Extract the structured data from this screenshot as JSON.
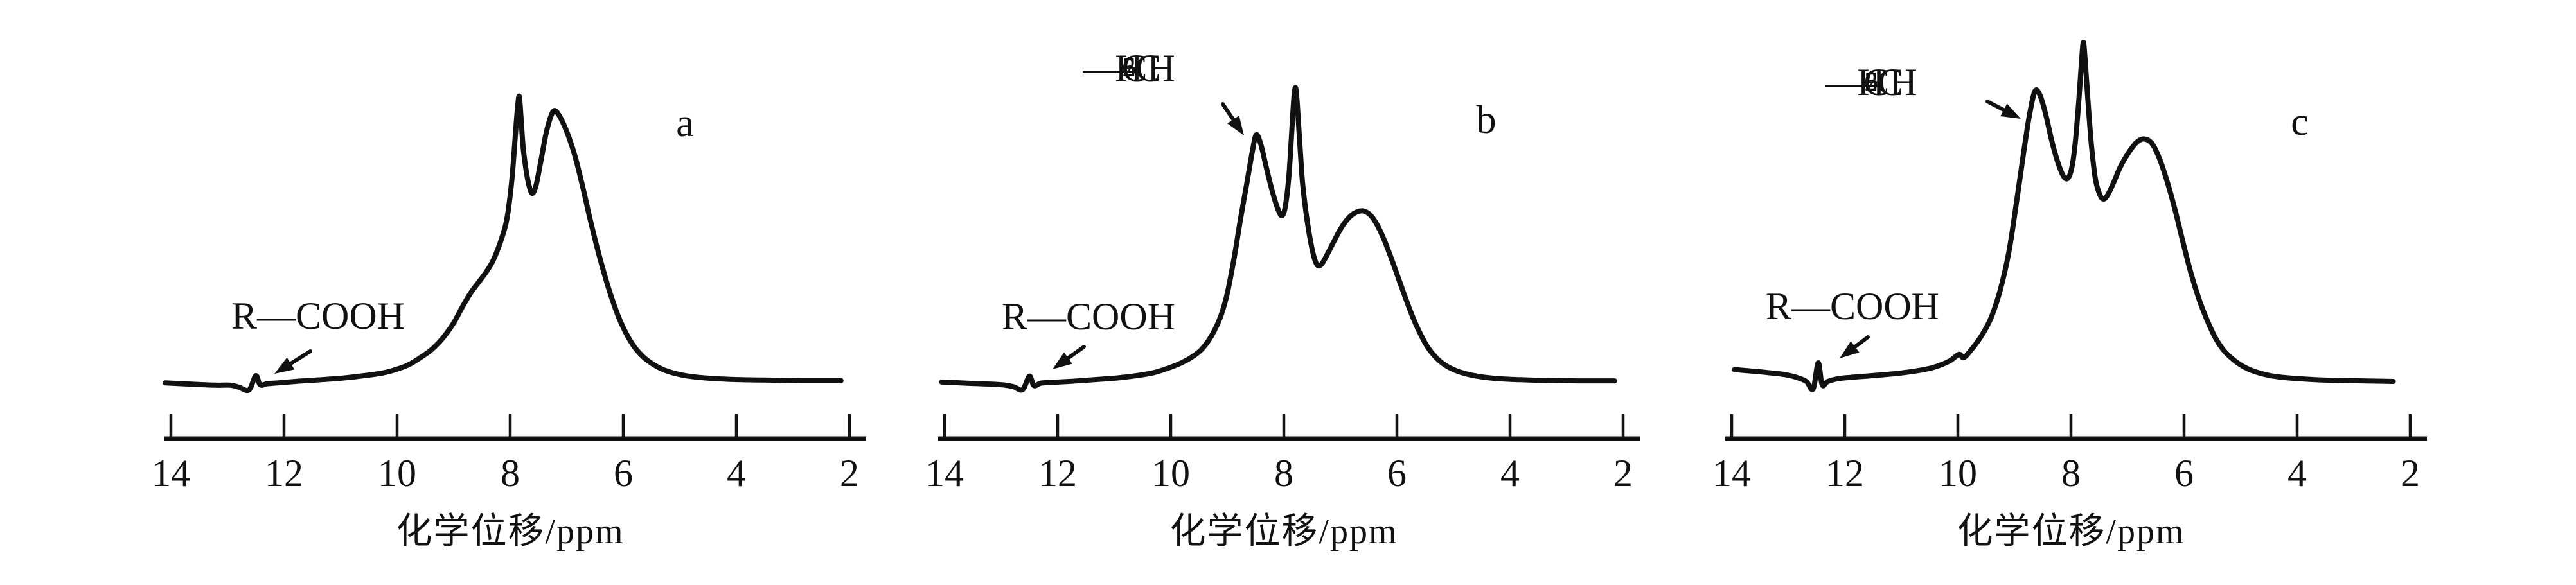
{
  "figure": {
    "description": "Three hand-drawn 1H-NMR spectra panels labelled a, b, c",
    "colors": {
      "ink": "#111111",
      "background": "#ffffff"
    }
  },
  "chart_data": {
    "type": "line",
    "xlabel": "化学位移/ppm",
    "x_axis": {
      "ticks": [
        14,
        12,
        10,
        8,
        6,
        4,
        2
      ],
      "range": [
        14,
        2
      ],
      "reversed": true,
      "unit": "ppm"
    },
    "y_axis": {
      "visible": false,
      "note": "intensity, arbitrary units, normalized 0-1 per panel"
    },
    "panels": [
      {
        "label": "a",
        "annotations": [
          {
            "name": "rcooh",
            "text": "R—COOH",
            "target_ppm": 12.5
          }
        ],
        "series": [
          [
            14.1,
            -0.005
          ],
          [
            13.6,
            -0.01
          ],
          [
            13.2,
            -0.013
          ],
          [
            12.95,
            -0.013
          ],
          [
            12.8,
            -0.02
          ],
          [
            12.62,
            -0.03
          ],
          [
            12.5,
            0.02
          ],
          [
            12.42,
            -0.012
          ],
          [
            12.3,
            -0.008
          ],
          [
            12.1,
            -0.005
          ],
          [
            11.8,
            0.0
          ],
          [
            11.5,
            0.004
          ],
          [
            11.2,
            0.008
          ],
          [
            10.9,
            0.013
          ],
          [
            10.6,
            0.02
          ],
          [
            10.3,
            0.028
          ],
          [
            10.05,
            0.04
          ],
          [
            9.8,
            0.058
          ],
          [
            9.6,
            0.082
          ],
          [
            9.4,
            0.11
          ],
          [
            9.2,
            0.15
          ],
          [
            9.0,
            0.205
          ],
          [
            8.85,
            0.26
          ],
          [
            8.7,
            0.31
          ],
          [
            8.55,
            0.35
          ],
          [
            8.42,
            0.385
          ],
          [
            8.3,
            0.425
          ],
          [
            8.18,
            0.485
          ],
          [
            8.08,
            0.55
          ],
          [
            8.02,
            0.62
          ],
          [
            7.96,
            0.73
          ],
          [
            7.91,
            0.86
          ],
          [
            7.87,
            0.96
          ],
          [
            7.84,
            1.0
          ],
          [
            7.81,
            0.93
          ],
          [
            7.77,
            0.82
          ],
          [
            7.71,
            0.73
          ],
          [
            7.65,
            0.675
          ],
          [
            7.6,
            0.66
          ],
          [
            7.54,
            0.69
          ],
          [
            7.46,
            0.77
          ],
          [
            7.37,
            0.865
          ],
          [
            7.29,
            0.925
          ],
          [
            7.22,
            0.95
          ],
          [
            7.14,
            0.935
          ],
          [
            7.05,
            0.9
          ],
          [
            6.95,
            0.85
          ],
          [
            6.84,
            0.78
          ],
          [
            6.72,
            0.685
          ],
          [
            6.6,
            0.58
          ],
          [
            6.47,
            0.475
          ],
          [
            6.34,
            0.38
          ],
          [
            6.2,
            0.29
          ],
          [
            6.07,
            0.22
          ],
          [
            5.94,
            0.165
          ],
          [
            5.8,
            0.12
          ],
          [
            5.64,
            0.085
          ],
          [
            5.47,
            0.06
          ],
          [
            5.3,
            0.042
          ],
          [
            5.12,
            0.03
          ],
          [
            4.92,
            0.021
          ],
          [
            4.7,
            0.015
          ],
          [
            4.45,
            0.011
          ],
          [
            4.2,
            0.008
          ],
          [
            3.9,
            0.006
          ],
          [
            3.55,
            0.005
          ],
          [
            3.2,
            0.004
          ],
          [
            2.8,
            0.003
          ],
          [
            2.45,
            0.003
          ],
          [
            2.15,
            0.003
          ]
        ]
      },
      {
        "label": "b",
        "annotations": [
          {
            "name": "rcooh",
            "text": "R—COOH",
            "target_ppm": 12.5
          },
          {
            "name": "ch2c6h5",
            "text": "—CH2—C6H5",
            "target_ppm": 8.5,
            "segments": [
              [
                "—CH",
                ""
              ],
              [
                "2",
                "sub"
              ],
              [
                "—C",
                ""
              ],
              [
                "6",
                "sub"
              ],
              [
                "H",
                ""
              ],
              [
                "5",
                "sub"
              ]
            ]
          }
        ],
        "series": [
          [
            14.05,
            -0.002
          ],
          [
            13.6,
            -0.006
          ],
          [
            13.2,
            -0.009
          ],
          [
            12.95,
            -0.012
          ],
          [
            12.78,
            -0.018
          ],
          [
            12.62,
            -0.028
          ],
          [
            12.5,
            0.018
          ],
          [
            12.42,
            -0.014
          ],
          [
            12.3,
            -0.006
          ],
          [
            12.1,
            -0.003
          ],
          [
            11.8,
            0.0
          ],
          [
            11.5,
            0.004
          ],
          [
            11.2,
            0.008
          ],
          [
            10.9,
            0.013
          ],
          [
            10.6,
            0.02
          ],
          [
            10.3,
            0.03
          ],
          [
            10.05,
            0.045
          ],
          [
            9.85,
            0.06
          ],
          [
            9.65,
            0.08
          ],
          [
            9.45,
            0.11
          ],
          [
            9.28,
            0.155
          ],
          [
            9.12,
            0.22
          ],
          [
            9.0,
            0.3
          ],
          [
            8.88,
            0.42
          ],
          [
            8.76,
            0.56
          ],
          [
            8.65,
            0.68
          ],
          [
            8.56,
            0.78
          ],
          [
            8.49,
            0.84
          ],
          [
            8.41,
            0.81
          ],
          [
            8.31,
            0.73
          ],
          [
            8.2,
            0.645
          ],
          [
            8.1,
            0.585
          ],
          [
            8.03,
            0.565
          ],
          [
            7.97,
            0.6
          ],
          [
            7.91,
            0.7
          ],
          [
            7.86,
            0.85
          ],
          [
            7.82,
            0.97
          ],
          [
            7.79,
            1.0
          ],
          [
            7.76,
            0.94
          ],
          [
            7.72,
            0.82
          ],
          [
            7.67,
            0.68
          ],
          [
            7.6,
            0.565
          ],
          [
            7.53,
            0.48
          ],
          [
            7.46,
            0.42
          ],
          [
            7.4,
            0.395
          ],
          [
            7.33,
            0.4
          ],
          [
            7.24,
            0.43
          ],
          [
            7.12,
            0.475
          ],
          [
            6.98,
            0.525
          ],
          [
            6.84,
            0.56
          ],
          [
            6.7,
            0.578
          ],
          [
            6.58,
            0.58
          ],
          [
            6.46,
            0.565
          ],
          [
            6.34,
            0.53
          ],
          [
            6.22,
            0.48
          ],
          [
            6.1,
            0.42
          ],
          [
            5.97,
            0.35
          ],
          [
            5.84,
            0.28
          ],
          [
            5.71,
            0.215
          ],
          [
            5.58,
            0.16
          ],
          [
            5.45,
            0.115
          ],
          [
            5.3,
            0.08
          ],
          [
            5.14,
            0.055
          ],
          [
            4.97,
            0.038
          ],
          [
            4.78,
            0.026
          ],
          [
            4.58,
            0.018
          ],
          [
            4.35,
            0.012
          ],
          [
            4.1,
            0.008
          ],
          [
            3.8,
            0.006
          ],
          [
            3.5,
            0.004
          ],
          [
            3.15,
            0.003
          ],
          [
            2.8,
            0.002
          ],
          [
            2.45,
            0.002
          ],
          [
            2.15,
            0.002
          ]
        ]
      },
      {
        "label": "c",
        "annotations": [
          {
            "name": "rcooh",
            "text": "R—COOH",
            "target_ppm": 12.5
          },
          {
            "name": "ch2c6h5",
            "text": "—CH2—C6H5",
            "target_ppm": 8.7,
            "segments": [
              [
                "—CH",
                ""
              ],
              [
                "2",
                "sub"
              ],
              [
                "—C",
                ""
              ],
              [
                "6",
                "sub"
              ],
              [
                "H",
                ""
              ],
              [
                "5",
                "sub"
              ]
            ]
          }
        ],
        "series": [
          [
            13.95,
            0.035
          ],
          [
            13.6,
            0.03
          ],
          [
            13.3,
            0.025
          ],
          [
            13.05,
            0.02
          ],
          [
            12.85,
            0.012
          ],
          [
            12.68,
            0.0
          ],
          [
            12.56,
            -0.022
          ],
          [
            12.47,
            0.055
          ],
          [
            12.4,
            -0.01
          ],
          [
            12.3,
            0.0
          ],
          [
            12.12,
            0.008
          ],
          [
            11.9,
            0.012
          ],
          [
            11.6,
            0.016
          ],
          [
            11.3,
            0.02
          ],
          [
            11.0,
            0.025
          ],
          [
            10.7,
            0.032
          ],
          [
            10.42,
            0.042
          ],
          [
            10.15,
            0.06
          ],
          [
            9.98,
            0.08
          ],
          [
            9.9,
            0.07
          ],
          [
            9.78,
            0.09
          ],
          [
            9.6,
            0.13
          ],
          [
            9.42,
            0.185
          ],
          [
            9.25,
            0.27
          ],
          [
            9.1,
            0.38
          ],
          [
            8.97,
            0.52
          ],
          [
            8.85,
            0.66
          ],
          [
            8.74,
            0.78
          ],
          [
            8.64,
            0.855
          ],
          [
            8.55,
            0.845
          ],
          [
            8.45,
            0.79
          ],
          [
            8.34,
            0.71
          ],
          [
            8.23,
            0.645
          ],
          [
            8.13,
            0.605
          ],
          [
            8.05,
            0.6
          ],
          [
            7.98,
            0.635
          ],
          [
            7.92,
            0.71
          ],
          [
            7.86,
            0.83
          ],
          [
            7.81,
            0.95
          ],
          [
            7.78,
            1.0
          ],
          [
            7.75,
            0.95
          ],
          [
            7.7,
            0.83
          ],
          [
            7.64,
            0.7
          ],
          [
            7.57,
            0.6
          ],
          [
            7.5,
            0.555
          ],
          [
            7.43,
            0.538
          ],
          [
            7.35,
            0.55
          ],
          [
            7.25,
            0.585
          ],
          [
            7.12,
            0.635
          ],
          [
            6.98,
            0.675
          ],
          [
            6.84,
            0.705
          ],
          [
            6.7,
            0.715
          ],
          [
            6.56,
            0.7
          ],
          [
            6.43,
            0.655
          ],
          [
            6.29,
            0.585
          ],
          [
            6.15,
            0.5
          ],
          [
            6.01,
            0.405
          ],
          [
            5.87,
            0.315
          ],
          [
            5.73,
            0.24
          ],
          [
            5.59,
            0.18
          ],
          [
            5.45,
            0.13
          ],
          [
            5.29,
            0.09
          ],
          [
            5.11,
            0.062
          ],
          [
            4.93,
            0.042
          ],
          [
            4.73,
            0.028
          ],
          [
            4.5,
            0.018
          ],
          [
            4.25,
            0.012
          ],
          [
            3.95,
            0.008
          ],
          [
            3.65,
            0.005
          ],
          [
            3.3,
            0.003
          ],
          [
            2.95,
            0.002
          ],
          [
            2.6,
            0.001
          ],
          [
            2.3,
            0.0
          ]
        ]
      }
    ]
  }
}
